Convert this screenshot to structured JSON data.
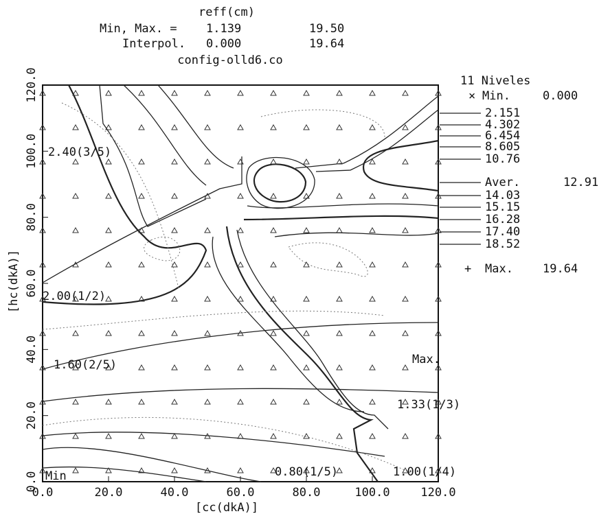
{
  "chart_data": {
    "type": "contour",
    "title": "reff(cm)",
    "stats": [
      {
        "label": "Min, Max. =",
        "min": 1.139,
        "max": {
          "value": 19.5,
          "label": "19.50"
        }
      },
      {
        "label": "Interpol.",
        "min": {
          "value": 0,
          "label": "0.000"
        },
        "max": 19.64
      }
    ],
    "subtitle": "config-olld6.co",
    "x_label": "[cc(dkA)]",
    "y_label": "[hc(dkA)]",
    "xlim": [
      0,
      120
    ],
    "ylim": [
      0,
      120
    ],
    "xticks": [
      {
        "value": 0,
        "label": "0.0"
      },
      {
        "value": 20,
        "label": "20.0"
      },
      {
        "value": 40,
        "label": "40.0"
      },
      {
        "value": 60,
        "label": "60.0"
      },
      {
        "value": 80,
        "label": "80.0"
      },
      {
        "value": 100,
        "label": "100.0"
      },
      {
        "value": 120,
        "label": "120.0"
      }
    ],
    "yticks": [
      {
        "value": 0,
        "label": "0.0"
      },
      {
        "value": 20,
        "label": "20.0"
      },
      {
        "value": 40,
        "label": "40.0"
      },
      {
        "value": 60,
        "label": "60.0"
      },
      {
        "value": 80,
        "label": "80.0"
      },
      {
        "value": 100,
        "label": "100.0"
      },
      {
        "value": 120,
        "label": "120.0"
      }
    ],
    "legend": {
      "title": "11 Niveles",
      "min_label": "Min.",
      "min": {
        "value": 0,
        "label": "0.000"
      },
      "levels": [
        2.151,
        4.302,
        6.454,
        8.605,
        10.76
      ],
      "average": {
        "name": "Aver.",
        "value": 12.91
      },
      "upper_levels": [
        14.03,
        15.15,
        16.28,
        {
          "value": 17.4,
          "label": "17.40"
        },
        18.52
      ],
      "max_label": "Max.",
      "max": 19.64
    },
    "annotations": [
      "2.40(3/5)",
      "2.00(1/2)",
      "1.60(2/5)",
      "1.33(1/3)",
      "0.80(1/5)",
      "1.00(1/4)",
      "Min",
      "Max."
    ]
  }
}
